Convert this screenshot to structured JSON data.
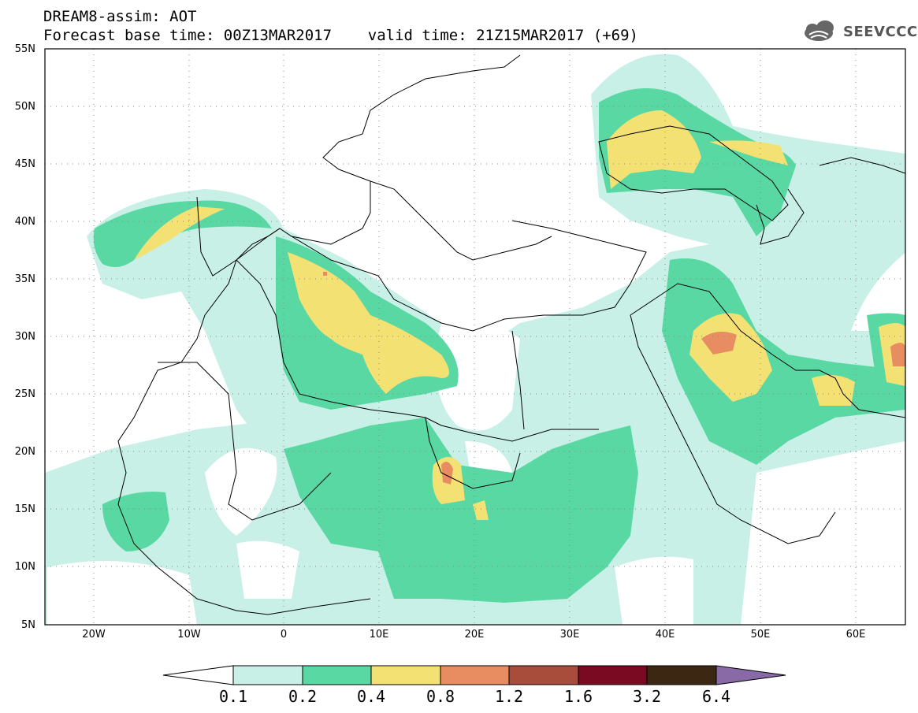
{
  "header": {
    "title_line1": "DREAM8-assim: AOT",
    "title_line2": "Forecast base time: 00Z13MAR2017    valid time: 21Z15MAR2017 (+69)",
    "logo_text": "SEEVCCC"
  },
  "map": {
    "lon_range": [
      -25,
      65
    ],
    "lat_range": [
      5,
      55
    ],
    "lon_ticks": [
      "20W",
      "10W",
      "0",
      "10E",
      "20E",
      "30E",
      "40E",
      "50E",
      "60E"
    ],
    "lat_ticks": [
      "55N",
      "50N",
      "45N",
      "40N",
      "35N",
      "30N",
      "25N",
      "20N",
      "15N",
      "10N",
      "5N"
    ],
    "gridlines": "dotted",
    "variable": "AOT"
  },
  "colorbar": {
    "labels": [
      "0.1",
      "0.2",
      "0.4",
      "0.8",
      "1.2",
      "1.6",
      "3.2",
      "6.4"
    ],
    "colors": [
      "#ffffff",
      "#c8f0e6",
      "#5ad8a4",
      "#f4e174",
      "#e88c62",
      "#a84c3c",
      "#7a0a22",
      "#3c2812",
      "#8a6aa6"
    ]
  }
}
